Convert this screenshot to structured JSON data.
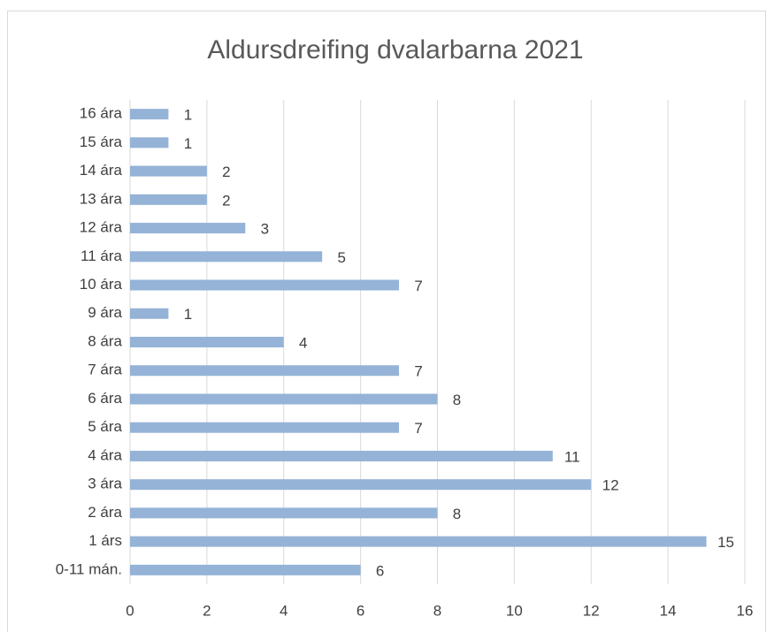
{
  "chart_data": {
    "type": "bar",
    "orientation": "horizontal",
    "title": "Aldursdreifing dvalarbarna 2021",
    "categories": [
      "0-11 mán.",
      "1 árs",
      "2 ára",
      "3 ára",
      "4 ára",
      "5 ára",
      "6 ára",
      "7 ára",
      "8 ára",
      "9 ára",
      "10 ára",
      "11 ára",
      "12 ára",
      "13 ára",
      "14 ára",
      "15 ára",
      "16 ára"
    ],
    "values": [
      6,
      15,
      8,
      12,
      11,
      7,
      8,
      7,
      4,
      1,
      7,
      5,
      3,
      2,
      2,
      1,
      1
    ],
    "color": "#95b3d7",
    "xlim": [
      0,
      16
    ],
    "xticks": [
      0,
      2,
      4,
      6,
      8,
      10,
      12,
      14,
      16
    ],
    "grid": true
  }
}
